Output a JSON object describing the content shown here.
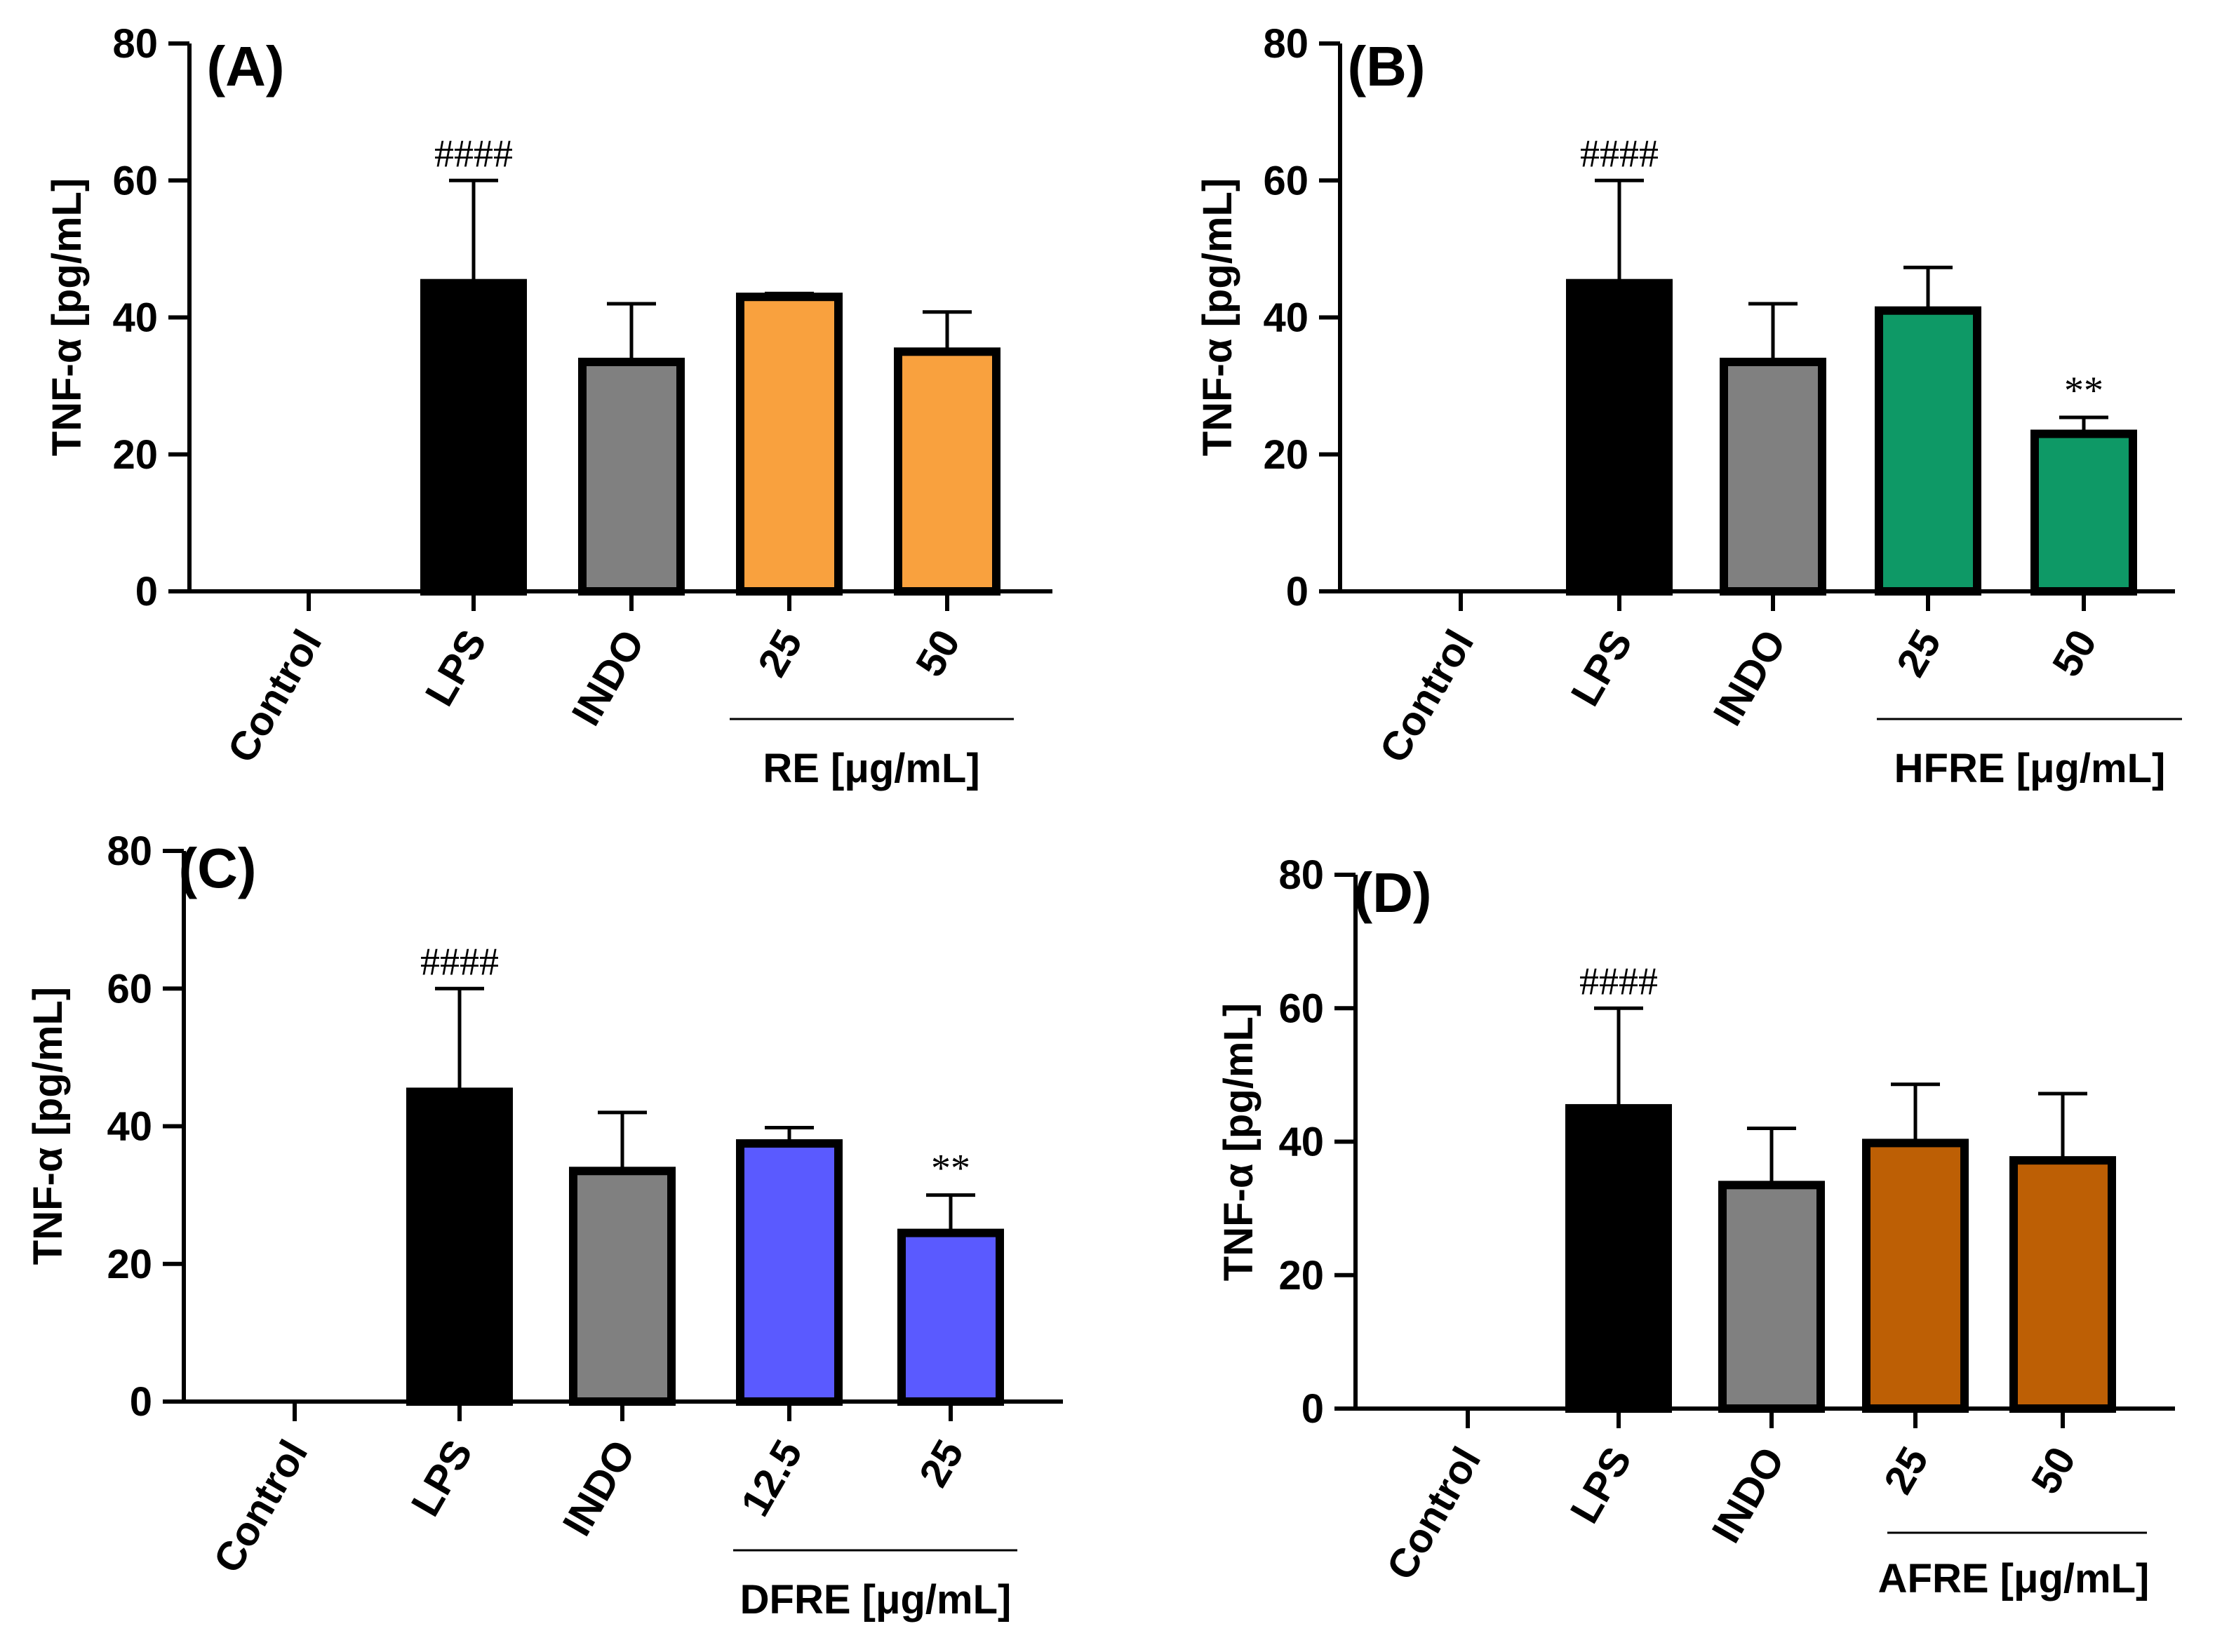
{
  "chart_data": [
    {
      "type": "bar",
      "title": "(A)",
      "ylabel": "TNF-α [pg/mL]",
      "ylim": [
        0,
        80
      ],
      "yticks": [
        "0",
        "20",
        "40",
        "60",
        "80"
      ],
      "categories": [
        "Control",
        "LPS",
        "INDO",
        "25",
        "50"
      ],
      "values": [
        0,
        45,
        33.5,
        43,
        35
      ],
      "errors": [
        0,
        15,
        8.5,
        0.5,
        5.8
      ],
      "colors": [
        "#ffffff",
        "#000000",
        "#808080",
        "#f9a13e",
        "#f9a13e"
      ],
      "annotations": [
        "",
        "####",
        "",
        "",
        ""
      ],
      "group_label": "RE [μg/mL]"
    },
    {
      "type": "bar",
      "title": "(B)",
      "ylabel": "TNF-α [pg/mL]",
      "ylim": [
        0,
        80
      ],
      "yticks": [
        "0",
        "20",
        "40",
        "60",
        "80"
      ],
      "categories": [
        "Control",
        "LPS",
        "INDO",
        "25",
        "50"
      ],
      "values": [
        0,
        45,
        33.5,
        41,
        23
      ],
      "errors": [
        0,
        15,
        8.5,
        6.3,
        2.4
      ],
      "colors": [
        "#ffffff",
        "#000000",
        "#808080",
        "#0e9966",
        "#0e9966"
      ],
      "annotations": [
        "",
        "####",
        "",
        "",
        "**"
      ],
      "group_label": "HFRE [μg/mL]"
    },
    {
      "type": "bar",
      "title": "(C)",
      "ylabel": "TNF-α [pg/mL]",
      "ylim": [
        0,
        80
      ],
      "yticks": [
        "0",
        "20",
        "40",
        "60",
        "80"
      ],
      "categories": [
        "Control",
        "LPS",
        "INDO",
        "12.5",
        "25"
      ],
      "values": [
        0,
        45,
        33.5,
        37.5,
        24.5
      ],
      "errors": [
        0,
        15,
        8.5,
        2.3,
        5.5
      ],
      "colors": [
        "#ffffff",
        "#000000",
        "#808080",
        "#5a5aff",
        "#5a5aff"
      ],
      "annotations": [
        "",
        "####",
        "",
        "",
        "**"
      ],
      "group_label": "DFRE [μg/mL]"
    },
    {
      "type": "bar",
      "title": "(D)",
      "ylabel": "TNF-α [pg/mL]",
      "ylim": [
        0,
        80
      ],
      "yticks": [
        "0",
        "20",
        "40",
        "60",
        "80"
      ],
      "categories": [
        "Control",
        "LPS",
        "INDO",
        "25",
        "50"
      ],
      "values": [
        0,
        45,
        33.5,
        39.8,
        37.2
      ],
      "errors": [
        0,
        15,
        8.5,
        8.8,
        10
      ],
      "colors": [
        "#ffffff",
        "#000000",
        "#808080",
        "#bd5f05",
        "#bd5f05"
      ],
      "annotations": [
        "",
        "####",
        "",
        "",
        ""
      ],
      "group_label": "AFRE [μg/mL]"
    }
  ]
}
